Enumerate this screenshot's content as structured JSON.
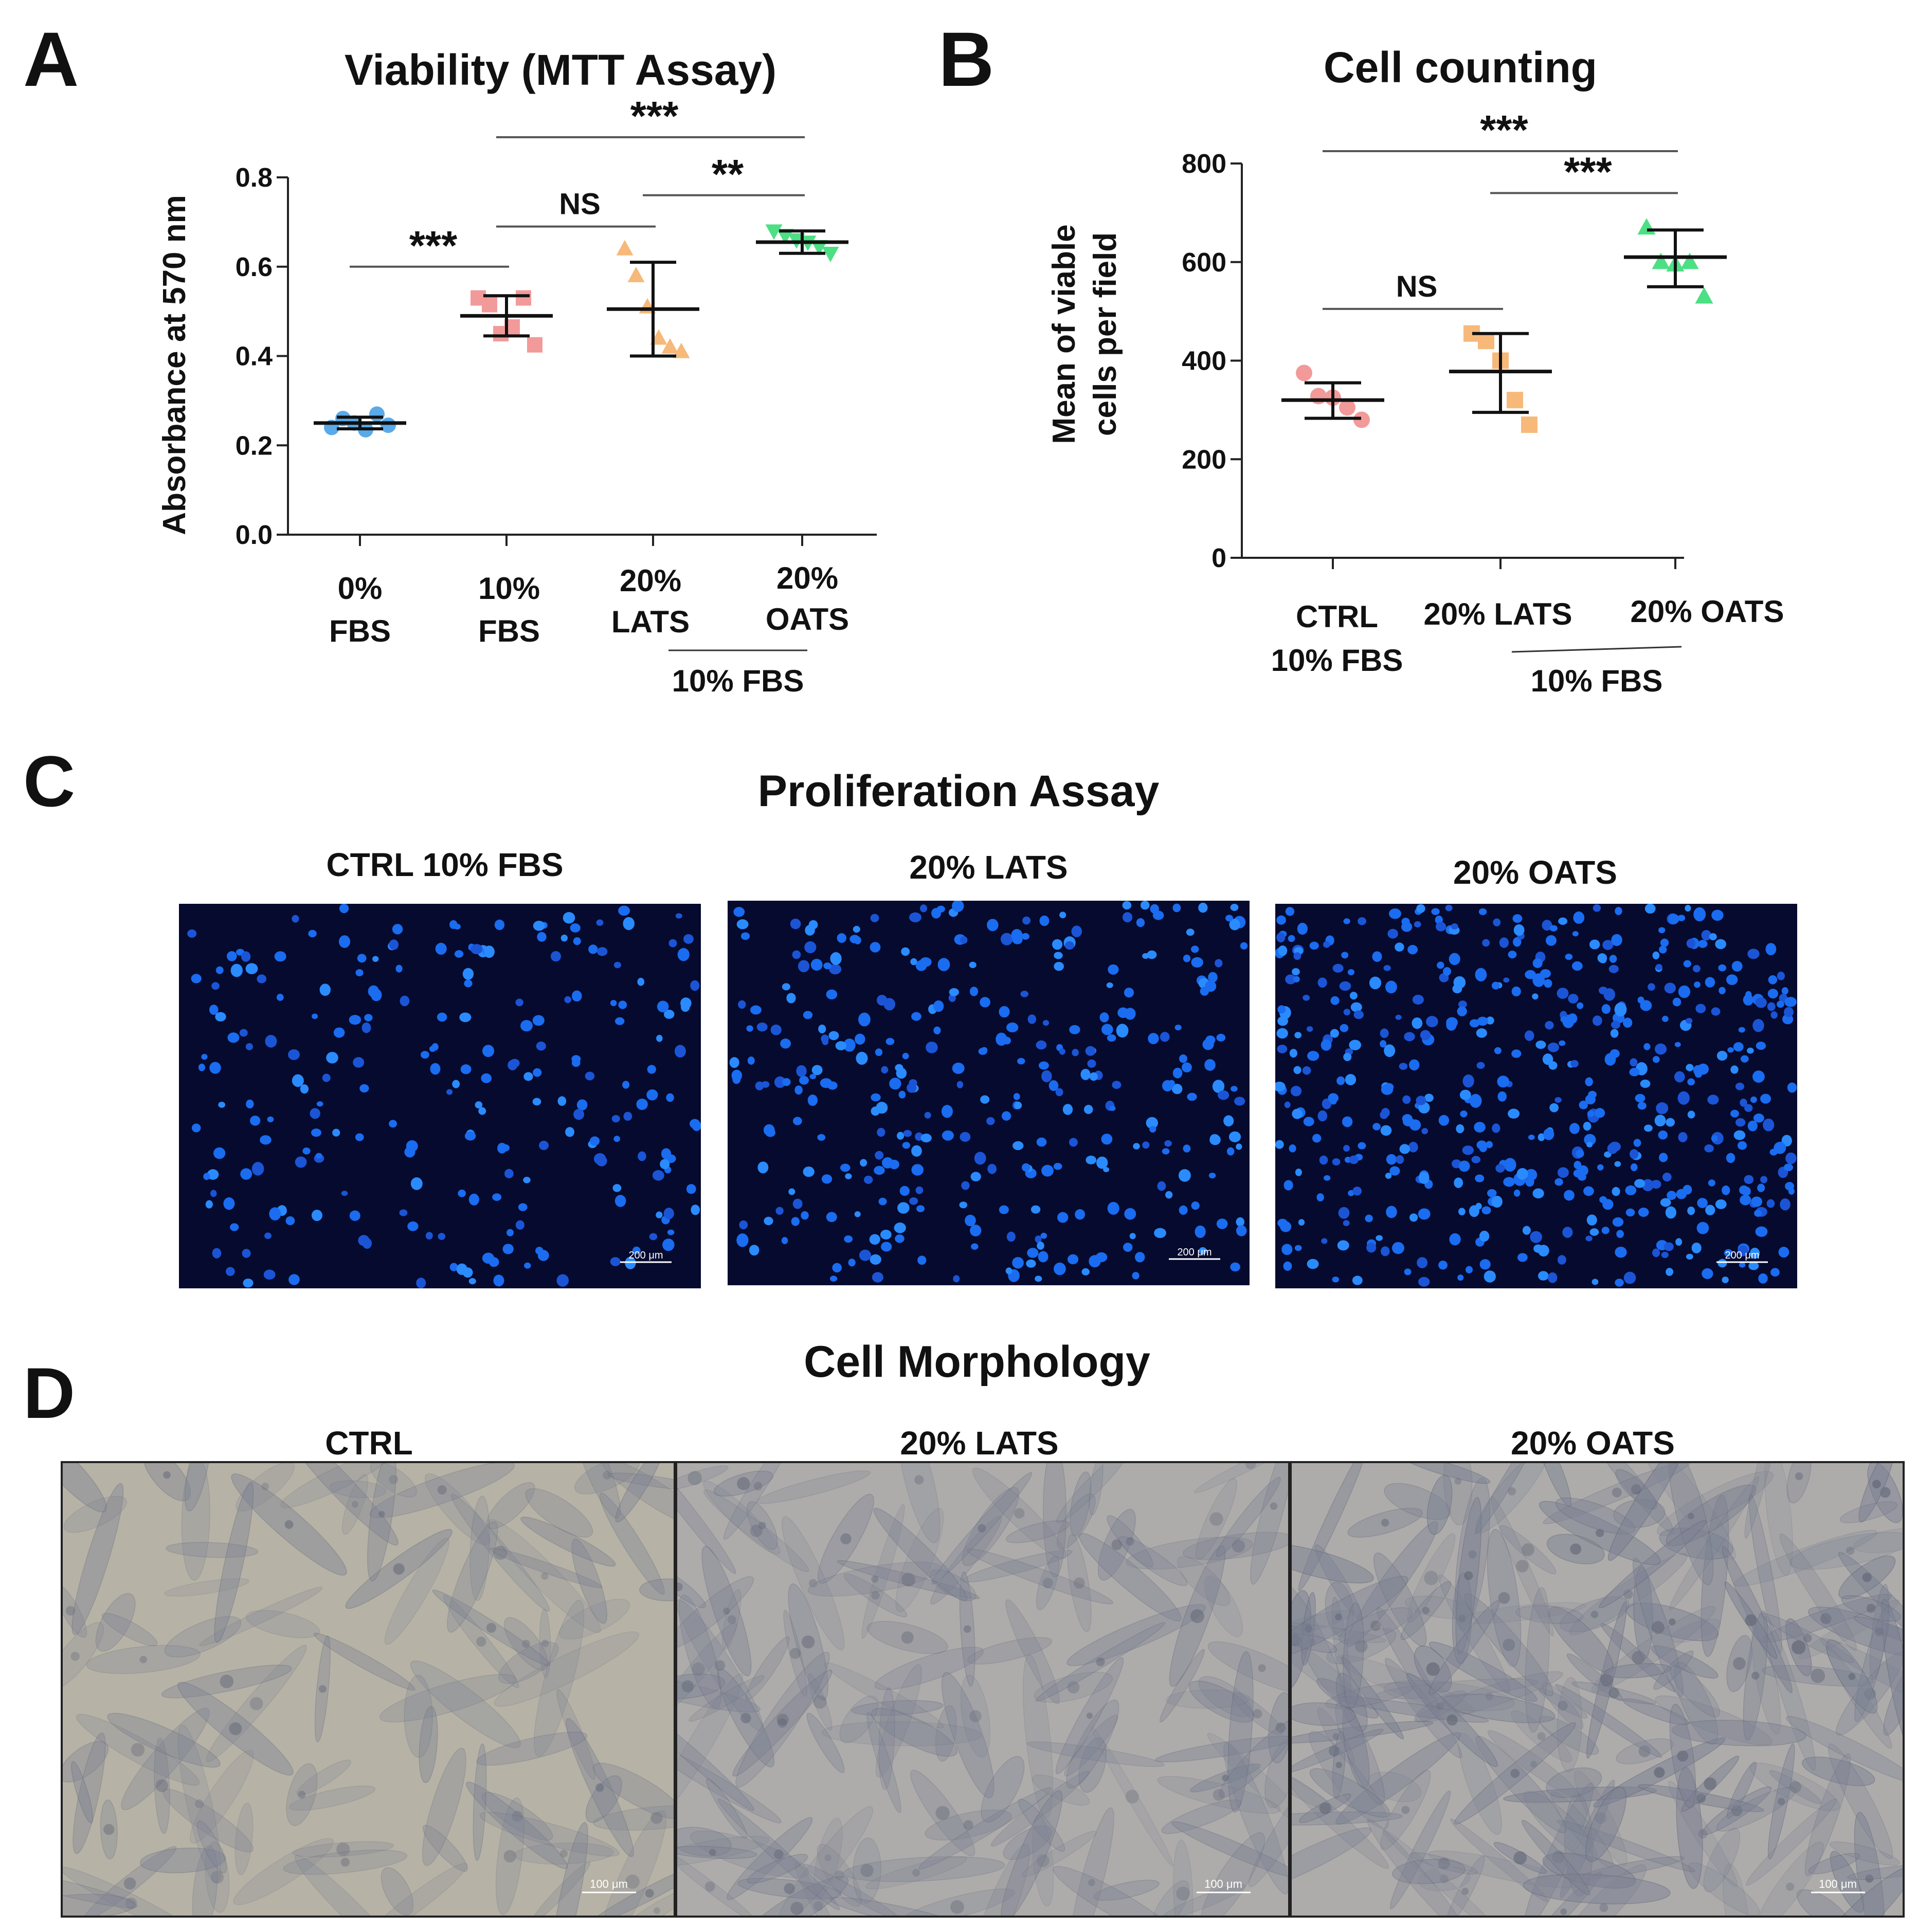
{
  "panels": {
    "A": {
      "letter": "A",
      "chart_data": {
        "type": "scatter",
        "title": "Viability (MTT Assay)",
        "ylabel": "Absorbance at 570 nm",
        "xlabel": "",
        "ylim": [
          0,
          0.8
        ],
        "yticks": [
          "0.0",
          "0.2",
          "0.4",
          "0.6",
          "0.8"
        ],
        "categories": [
          {
            "line1": "0%",
            "line2": "FBS"
          },
          {
            "line1": "10%",
            "line2": "FBS"
          },
          {
            "line1": "20%",
            "line2": "LATS"
          },
          {
            "line1": "20%",
            "line2": "OATS"
          }
        ],
        "group_label": "10% FBS",
        "groups": [
          {
            "marker": "circle",
            "color": "#5aaae8",
            "mean": 0.25,
            "sd_low": 0.237,
            "sd_high": 0.263,
            "points": [
              0.24,
              0.26,
              0.25,
              0.235,
              0.27,
              0.245
            ]
          },
          {
            "marker": "square",
            "color": "#f29a9a",
            "mean": 0.49,
            "sd_low": 0.445,
            "sd_high": 0.535,
            "points": [
              0.53,
              0.515,
              0.45,
              0.465,
              0.53,
              0.425
            ]
          },
          {
            "marker": "triangle",
            "color": "#f6b97a",
            "mean": 0.505,
            "sd_low": 0.4,
            "sd_high": 0.61,
            "points": [
              0.64,
              0.58,
              0.51,
              0.44,
              0.42,
              0.41
            ]
          },
          {
            "marker": "triangle-down",
            "color": "#4ddf84",
            "mean": 0.655,
            "sd_low": 0.63,
            "sd_high": 0.68,
            "points": [
              0.68,
              0.67,
              0.66,
              0.655,
              0.645,
              0.63
            ]
          }
        ],
        "significance": [
          {
            "from": 0,
            "to": 1,
            "label": "***",
            "y": 0.6
          },
          {
            "from": 1,
            "to": 2,
            "label": "NS",
            "y": 0.69
          },
          {
            "from": 2,
            "to": 3,
            "label": "**",
            "y": 0.76
          },
          {
            "from": 1,
            "to": 3,
            "label": "***",
            "y": 0.89
          }
        ]
      }
    },
    "B": {
      "letter": "B",
      "chart_data": {
        "type": "scatter",
        "title": "Cell counting",
        "ylabel_line1": "Mean of viable",
        "ylabel_line2": "cells per field",
        "xlabel": "",
        "ylim": [
          0,
          800
        ],
        "yticks": [
          "0",
          "200",
          "400",
          "600",
          "800"
        ],
        "categories": [
          {
            "line1": "CTRL",
            "line2": "10% FBS"
          },
          {
            "line1": "20% LATS",
            "line2": ""
          },
          {
            "line1": "20% OATS",
            "line2": ""
          }
        ],
        "group_label": "10% FBS",
        "groups": [
          {
            "marker": "circle",
            "color": "#f29a9a",
            "mean": 320,
            "sd_low": 283,
            "sd_high": 355,
            "points": [
              375,
              328,
              325,
              305,
              280
            ]
          },
          {
            "marker": "square",
            "color": "#f6b97a",
            "mean": 378,
            "sd_low": 295,
            "sd_high": 455,
            "points": [
              455,
              440,
              400,
              320,
              270
            ]
          },
          {
            "marker": "triangle",
            "color": "#4ddf84",
            "mean": 610,
            "sd_low": 550,
            "sd_high": 665,
            "points": [
              670,
              600,
              595,
              600,
              530
            ]
          }
        ],
        "significance": [
          {
            "from": 0,
            "to": 1,
            "label": "NS",
            "y": 505
          },
          {
            "from": 1,
            "to": 2,
            "label": "***",
            "y": 740
          },
          {
            "from": 0,
            "to": 2,
            "label": "***",
            "y": 825
          }
        ]
      }
    },
    "C": {
      "letter": "C",
      "title": "Proliferation Assay",
      "images": [
        {
          "label": "CTRL 10% FBS",
          "scale": "200 μm",
          "density": 230
        },
        {
          "label": "20% LATS",
          "scale": "200 μm",
          "density": 330
        },
        {
          "label": "20% OATS",
          "scale": "200 μm",
          "density": 520
        }
      ]
    },
    "D": {
      "letter": "D",
      "title": "Cell Morphology",
      "images": [
        {
          "label": "CTRL",
          "scale": "100 μm",
          "density": 110
        },
        {
          "label": "20% LATS",
          "scale": "100 μm",
          "density": 150
        },
        {
          "label": "20% OATS",
          "scale": "100 μm",
          "density": 210
        }
      ]
    }
  }
}
